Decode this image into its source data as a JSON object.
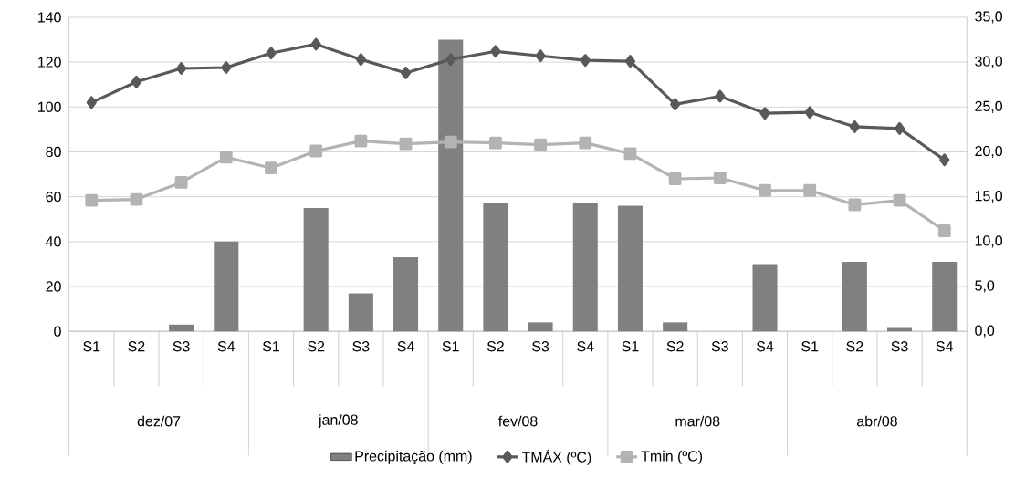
{
  "chart_data": {
    "type": "bar",
    "categories": [
      "S1",
      "S2",
      "S3",
      "S4",
      "S1",
      "S2",
      "S3",
      "S4",
      "S1",
      "S2",
      "S3",
      "S4",
      "S1",
      "S2",
      "S3",
      "S4",
      "S1",
      "S2",
      "S3",
      "S4"
    ],
    "series": [
      {
        "name": "Precipitação (mm)",
        "color": "#808080",
        "values": [
          0,
          0,
          3,
          40,
          0,
          55,
          17,
          33,
          130,
          57,
          4,
          57,
          56,
          4,
          0,
          30,
          0,
          31,
          1.5,
          31
        ]
      },
      {
        "name": "TMÁX (ºC)",
        "type": "line",
        "axis": "y2",
        "marker": "diamond",
        "color": "#595959",
        "values": [
          25.5,
          27.8,
          29.3,
          29.4,
          31.0,
          32.0,
          30.3,
          28.8,
          30.3,
          31.2,
          30.7,
          30.2,
          30.1,
          25.3,
          26.2,
          24.3,
          24.4,
          22.8,
          22.6,
          19.1
        ]
      },
      {
        "name": "Tmin (ºC)",
        "type": "line",
        "axis": "y2",
        "marker": "square",
        "color": "#b3b3b3",
        "values": [
          14.6,
          14.7,
          16.6,
          19.4,
          18.2,
          20.1,
          21.2,
          20.9,
          21.1,
          21.0,
          20.8,
          21.0,
          19.8,
          17.0,
          17.1,
          15.7,
          15.7,
          14.1,
          14.6,
          11.2
        ]
      }
    ],
    "ylim": [
      0,
      140
    ],
    "yticks": [
      0,
      20,
      40,
      60,
      80,
      100,
      120,
      140
    ],
    "y2lim": [
      0,
      35
    ],
    "y2ticks": [
      {
        "value": 0,
        "label": "0,0"
      },
      {
        "value": 5,
        "label": "5,0"
      },
      {
        "value": 10,
        "label": "10,0"
      },
      {
        "value": 15,
        "label": "15,0"
      },
      {
        "value": 20,
        "label": "20,0"
      },
      {
        "value": 25,
        "label": "25,0"
      },
      {
        "value": 30,
        "label": "30,0"
      },
      {
        "value": 35,
        "label": "35,0"
      }
    ],
    "grid": "y",
    "legend": "bottom",
    "annotations": [
      "dez/07",
      "jan/08",
      "fev/08",
      "mar/08",
      "abr/08"
    ]
  }
}
